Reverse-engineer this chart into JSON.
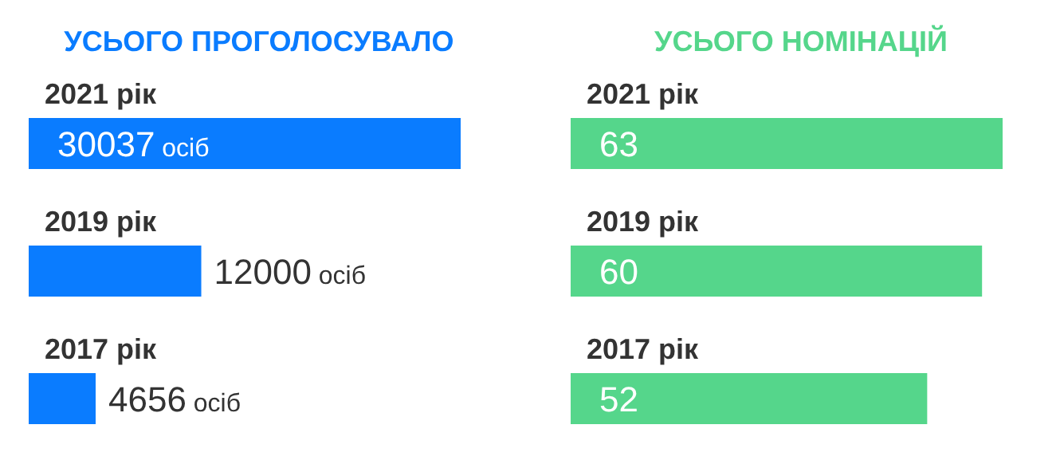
{
  "chart_data": [
    {
      "type": "bar",
      "orientation": "horizontal",
      "title": "УСЬОГО ПРОГОЛОСУВАЛО",
      "categories": [
        "2021 рік",
        "2019 рік",
        "2017 рік"
      ],
      "values": [
        30037,
        12000,
        4656
      ],
      "color": "#0a7cff",
      "value_labels": [
        "30037 осіб",
        "12000 осіб",
        "4656 осіб"
      ]
    },
    {
      "type": "bar",
      "orientation": "horizontal",
      "title": "УСЬОГО НОМІНАЦІЙ",
      "categories": [
        "2021 рік",
        "2019 рік",
        "2017 рік"
      ],
      "values": [
        63,
        60,
        52
      ],
      "color": "#55d68b",
      "data_labels": true
    }
  ]
}
